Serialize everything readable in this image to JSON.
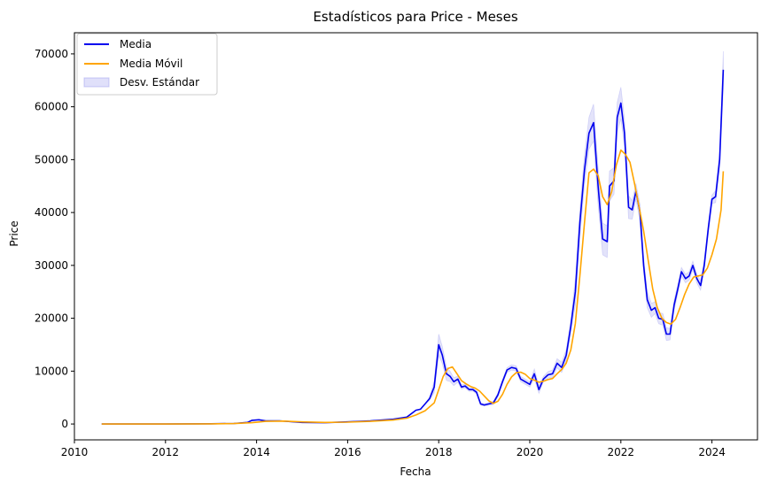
{
  "chart_data": {
    "type": "line",
    "title": "Estadísticos para Price - Meses",
    "xlabel": "Fecha",
    "ylabel": "Price",
    "xlim": [
      2010.0,
      2025.0
    ],
    "ylim": [
      -3000,
      74000
    ],
    "x_ticks": [
      2010,
      2012,
      2014,
      2016,
      2018,
      2020,
      2022,
      2024
    ],
    "y_ticks": [
      0,
      10000,
      20000,
      30000,
      40000,
      50000,
      60000,
      70000
    ],
    "grid": false,
    "legend": "top-left",
    "series": [
      {
        "name": "Media",
        "color": "#0000ee",
        "points": [
          [
            2010.6,
            0
          ],
          [
            2011.0,
            0
          ],
          [
            2012.0,
            0
          ],
          [
            2013.0,
            50
          ],
          [
            2013.5,
            100
          ],
          [
            2013.8,
            300
          ],
          [
            2013.9,
            700
          ],
          [
            2014.05,
            800
          ],
          [
            2014.2,
            600
          ],
          [
            2014.5,
            600
          ],
          [
            2015.0,
            300
          ],
          [
            2015.5,
            250
          ],
          [
            2016.0,
            400
          ],
          [
            2016.5,
            600
          ],
          [
            2017.0,
            900
          ],
          [
            2017.3,
            1300
          ],
          [
            2017.5,
            2600
          ],
          [
            2017.6,
            2800
          ],
          [
            2017.7,
            3800
          ],
          [
            2017.8,
            4800
          ],
          [
            2017.9,
            7000
          ],
          [
            2018.0,
            15000
          ],
          [
            2018.08,
            13000
          ],
          [
            2018.17,
            9500
          ],
          [
            2018.25,
            9000
          ],
          [
            2018.33,
            8000
          ],
          [
            2018.42,
            8500
          ],
          [
            2018.5,
            7000
          ],
          [
            2018.58,
            7200
          ],
          [
            2018.67,
            6500
          ],
          [
            2018.75,
            6500
          ],
          [
            2018.83,
            6000
          ],
          [
            2018.92,
            3800
          ],
          [
            2019.0,
            3600
          ],
          [
            2019.1,
            3800
          ],
          [
            2019.2,
            4000
          ],
          [
            2019.3,
            5500
          ],
          [
            2019.4,
            8000
          ],
          [
            2019.5,
            10200
          ],
          [
            2019.6,
            10700
          ],
          [
            2019.7,
            10500
          ],
          [
            2019.8,
            8500
          ],
          [
            2019.9,
            8000
          ],
          [
            2020.0,
            7500
          ],
          [
            2020.1,
            9500
          ],
          [
            2020.2,
            6500
          ],
          [
            2020.3,
            8500
          ],
          [
            2020.4,
            9300
          ],
          [
            2020.5,
            9500
          ],
          [
            2020.6,
            11500
          ],
          [
            2020.7,
            10700
          ],
          [
            2020.8,
            13000
          ],
          [
            2020.9,
            18500
          ],
          [
            2021.0,
            25000
          ],
          [
            2021.1,
            38000
          ],
          [
            2021.2,
            48000
          ],
          [
            2021.3,
            55000
          ],
          [
            2021.4,
            57000
          ],
          [
            2021.5,
            45000
          ],
          [
            2021.6,
            35000
          ],
          [
            2021.7,
            34500
          ],
          [
            2021.75,
            45000
          ],
          [
            2021.85,
            46000
          ],
          [
            2021.92,
            58000
          ],
          [
            2022.0,
            60700
          ],
          [
            2022.08,
            55000
          ],
          [
            2022.17,
            41000
          ],
          [
            2022.25,
            40500
          ],
          [
            2022.33,
            44000
          ],
          [
            2022.42,
            40000
          ],
          [
            2022.5,
            30000
          ],
          [
            2022.58,
            23500
          ],
          [
            2022.67,
            21500
          ],
          [
            2022.75,
            22000
          ],
          [
            2022.83,
            20000
          ],
          [
            2022.92,
            19800
          ],
          [
            2023.0,
            17000
          ],
          [
            2023.08,
            17000
          ],
          [
            2023.17,
            22500
          ],
          [
            2023.25,
            25500
          ],
          [
            2023.33,
            28800
          ],
          [
            2023.42,
            27500
          ],
          [
            2023.5,
            28000
          ],
          [
            2023.58,
            30000
          ],
          [
            2023.67,
            27500
          ],
          [
            2023.75,
            26200
          ],
          [
            2023.83,
            30000
          ],
          [
            2023.92,
            37000
          ],
          [
            2024.0,
            42500
          ],
          [
            2024.08,
            43000
          ],
          [
            2024.17,
            50000
          ],
          [
            2024.25,
            67000
          ]
        ]
      },
      {
        "name": "Media Móvil",
        "color": "#ffa500",
        "points": [
          [
            2010.6,
            0
          ],
          [
            2011.0,
            0
          ],
          [
            2012.0,
            0
          ],
          [
            2013.0,
            30
          ],
          [
            2013.5,
            80
          ],
          [
            2013.9,
            250
          ],
          [
            2014.2,
            500
          ],
          [
            2014.6,
            550
          ],
          [
            2015.0,
            400
          ],
          [
            2015.5,
            300
          ],
          [
            2016.0,
            350
          ],
          [
            2016.5,
            500
          ],
          [
            2017.0,
            750
          ],
          [
            2017.3,
            1100
          ],
          [
            2017.5,
            1700
          ],
          [
            2017.7,
            2500
          ],
          [
            2017.9,
            4000
          ],
          [
            2018.0,
            6500
          ],
          [
            2018.1,
            9000
          ],
          [
            2018.2,
            10500
          ],
          [
            2018.3,
            10800
          ],
          [
            2018.4,
            9500
          ],
          [
            2018.5,
            8200
          ],
          [
            2018.6,
            7600
          ],
          [
            2018.7,
            7100
          ],
          [
            2018.8,
            6800
          ],
          [
            2018.9,
            6200
          ],
          [
            2019.0,
            5300
          ],
          [
            2019.1,
            4400
          ],
          [
            2019.2,
            3900
          ],
          [
            2019.3,
            4300
          ],
          [
            2019.4,
            5600
          ],
          [
            2019.5,
            7500
          ],
          [
            2019.6,
            8900
          ],
          [
            2019.7,
            9700
          ],
          [
            2019.8,
            9800
          ],
          [
            2019.9,
            9400
          ],
          [
            2020.0,
            8600
          ],
          [
            2020.1,
            8300
          ],
          [
            2020.2,
            7900
          ],
          [
            2020.3,
            8100
          ],
          [
            2020.4,
            8400
          ],
          [
            2020.5,
            8600
          ],
          [
            2020.6,
            9500
          ],
          [
            2020.7,
            10300
          ],
          [
            2020.8,
            11500
          ],
          [
            2020.9,
            14000
          ],
          [
            2021.0,
            19000
          ],
          [
            2021.1,
            28000
          ],
          [
            2021.2,
            38000
          ],
          [
            2021.3,
            47500
          ],
          [
            2021.4,
            48200
          ],
          [
            2021.5,
            47000
          ],
          [
            2021.6,
            43000
          ],
          [
            2021.7,
            41500
          ],
          [
            2021.8,
            44000
          ],
          [
            2021.9,
            49000
          ],
          [
            2022.0,
            51800
          ],
          [
            2022.1,
            51000
          ],
          [
            2022.2,
            49500
          ],
          [
            2022.3,
            45500
          ],
          [
            2022.4,
            41000
          ],
          [
            2022.5,
            36500
          ],
          [
            2022.6,
            31000
          ],
          [
            2022.7,
            25500
          ],
          [
            2022.8,
            22000
          ],
          [
            2022.9,
            20000
          ],
          [
            2023.0,
            19200
          ],
          [
            2023.1,
            18900
          ],
          [
            2023.2,
            19800
          ],
          [
            2023.3,
            22000
          ],
          [
            2023.4,
            24500
          ],
          [
            2023.5,
            26500
          ],
          [
            2023.6,
            27800
          ],
          [
            2023.7,
            28000
          ],
          [
            2023.8,
            28200
          ],
          [
            2023.9,
            29500
          ],
          [
            2024.0,
            32000
          ],
          [
            2024.1,
            35000
          ],
          [
            2024.2,
            40500
          ],
          [
            2024.25,
            47800
          ]
        ]
      }
    ],
    "band": {
      "name": "Desv. Estándar",
      "color": "#9999ee",
      "half_width": [
        [
          2017.8,
          300
        ],
        [
          2017.95,
          1500
        ],
        [
          2018.0,
          2000
        ],
        [
          2018.1,
          1500
        ],
        [
          2018.3,
          800
        ],
        [
          2018.5,
          400
        ],
        [
          2019.0,
          200
        ],
        [
          2019.6,
          500
        ],
        [
          2020.0,
          500
        ],
        [
          2020.1,
          900
        ],
        [
          2020.2,
          700
        ],
        [
          2020.3,
          500
        ],
        [
          2020.9,
          1200
        ],
        [
          2021.0,
          2500
        ],
        [
          2021.2,
          2800
        ],
        [
          2021.3,
          3000
        ],
        [
          2021.4,
          3500
        ],
        [
          2021.5,
          3500
        ],
        [
          2021.6,
          3000
        ],
        [
          2021.7,
          3000
        ],
        [
          2021.85,
          2500
        ],
        [
          2021.92,
          2800
        ],
        [
          2022.0,
          3000
        ],
        [
          2022.1,
          2500
        ],
        [
          2022.2,
          2000
        ],
        [
          2022.3,
          1500
        ],
        [
          2022.5,
          1500
        ],
        [
          2022.6,
          1500
        ],
        [
          2022.8,
          1000
        ],
        [
          2023.0,
          1200
        ],
        [
          2023.3,
          800
        ],
        [
          2023.6,
          800
        ],
        [
          2023.9,
          1000
        ],
        [
          2024.0,
          800
        ],
        [
          2024.17,
          1500
        ],
        [
          2024.25,
          3500
        ]
      ]
    }
  }
}
